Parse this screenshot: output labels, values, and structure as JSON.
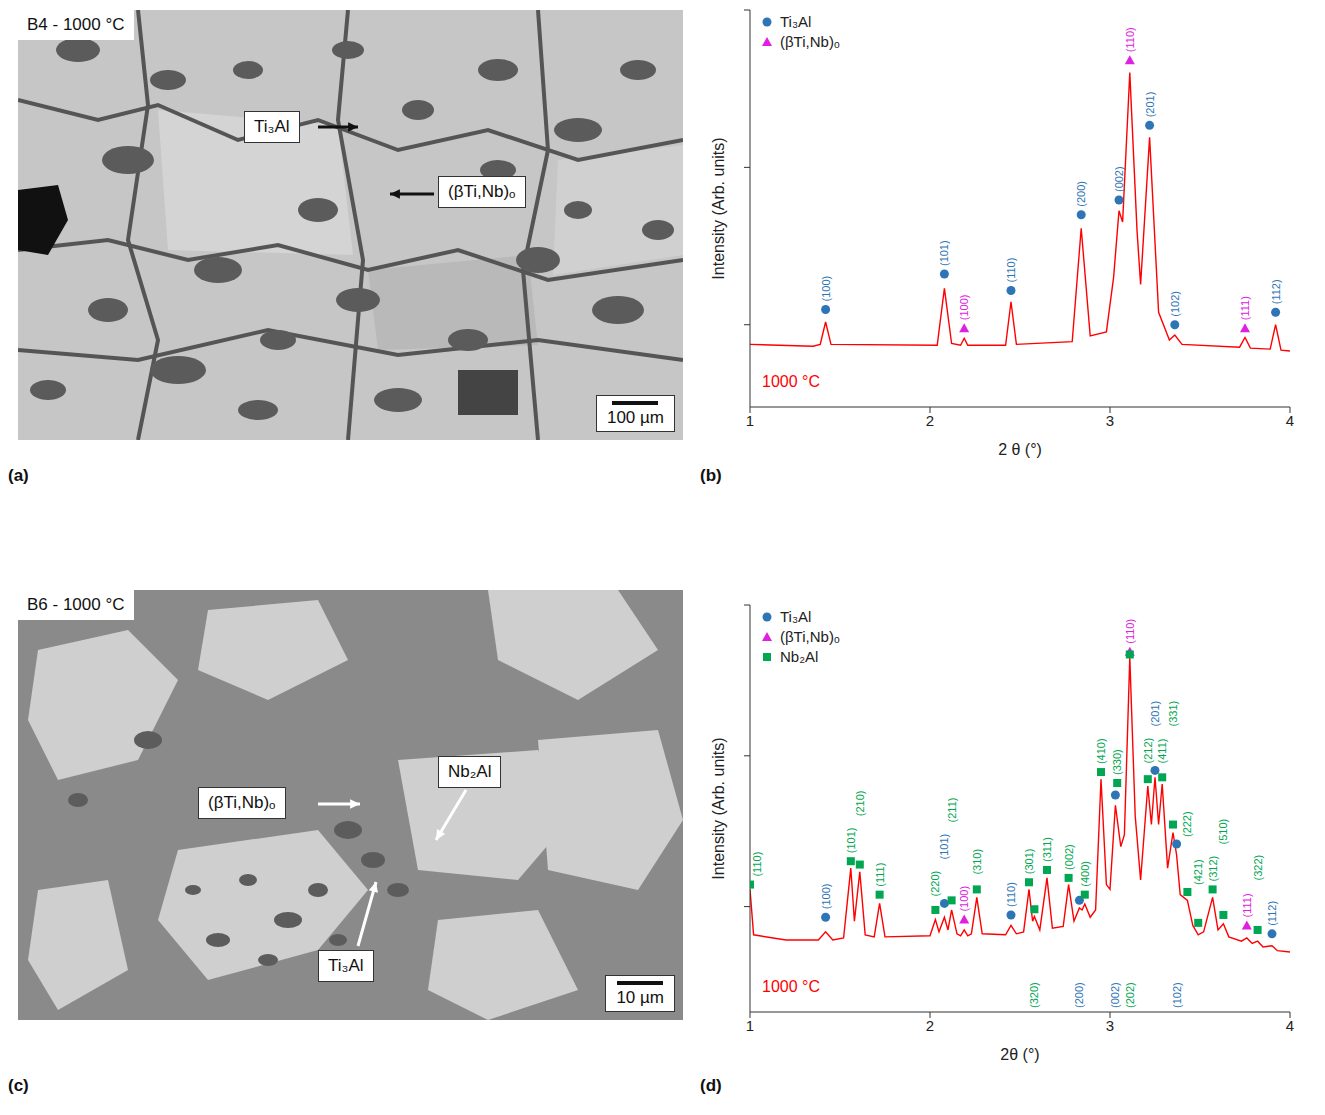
{
  "chart_data": [
    {
      "panel_label": "(b)",
      "type": "line",
      "x_label": "2 θ (°)",
      "y_label": "Intensity (Arb. units)",
      "annotation": "1000 °C",
      "log": "y",
      "tick_labels": "x",
      "legend": "upper left",
      "xlim": [
        1,
        4
      ],
      "xticks": [
        1,
        2,
        3,
        4
      ],
      "ylim": [
        3,
        1000
      ],
      "yticks": [
        10,
        100,
        1000
      ],
      "series": [
        {
          "type": "line",
          "line_style": "solid",
          "color": "#ff0000",
          "x": [
            1.0,
            1.35,
            1.39,
            1.42,
            1.45,
            2.04,
            2.08,
            2.12,
            2.17,
            2.19,
            2.21,
            2.42,
            2.45,
            2.48,
            2.79,
            2.84,
            2.89,
            2.98,
            3.02,
            3.05,
            3.07,
            3.11,
            3.15,
            3.17,
            3.22,
            3.27,
            3.33,
            3.36,
            3.4,
            3.72,
            3.75,
            3.78,
            3.89,
            3.92,
            3.95,
            4.0
          ],
          "values": [
            7.5,
            7.3,
            7.5,
            10.4,
            7.5,
            7.4,
            17,
            7.6,
            7.4,
            8.2,
            7.4,
            7.4,
            14,
            7.5,
            7.8,
            41,
            8.5,
            9,
            20,
            53,
            45,
            400,
            40,
            18,
            155,
            12,
            8,
            8.6,
            7.5,
            7.2,
            8.3,
            7.1,
            7,
            10,
            6.9,
            6.8
          ]
        },
        {
          "name": "Ti₃Al",
          "type": "scatter",
          "marker": "circle",
          "color": "#2e75b6",
          "x": [
            1.42,
            2.08,
            2.45,
            2.84,
            3.05,
            3.22,
            3.36,
            3.92
          ],
          "values": [
            12.5,
            21,
            16.5,
            50,
            62,
            185,
            10,
            12
          ],
          "labels": [
            "(100)",
            "(101)",
            "(110)",
            "(200)",
            "(002)",
            "(201)",
            "(102)",
            "(112)"
          ]
        },
        {
          "name": "(βTi,Nb)ₒ",
          "type": "scatter",
          "marker": "triangle",
          "color": "#e020e0",
          "x": [
            2.19,
            3.11,
            3.75
          ],
          "values": [
            9.5,
            480,
            9.5
          ],
          "labels": [
            "(100)",
            "(110)",
            "(111)"
          ]
        }
      ]
    },
    {
      "panel_label": "(d)",
      "type": "line",
      "x_label": "2θ (°)",
      "y_label": "Intensity (Arb. units)",
      "annotation": "1000 °C",
      "log": "y",
      "tick_labels": "x",
      "legend": "upper left",
      "xlim": [
        1,
        4
      ],
      "xticks": [
        1,
        2,
        3,
        4
      ],
      "ylim": [
        2,
        1000
      ],
      "yticks": [
        10,
        100,
        1000
      ],
      "series": [
        {
          "type": "line",
          "line_style": "solid",
          "color": "#ff0000",
          "x": [
            1.0,
            1.02,
            1.2,
            1.38,
            1.42,
            1.46,
            1.52,
            1.56,
            1.58,
            1.61,
            1.64,
            1.69,
            1.72,
            1.75,
            2.0,
            2.03,
            2.05,
            2.08,
            2.1,
            2.12,
            2.15,
            2.17,
            2.19,
            2.21,
            2.23,
            2.26,
            2.29,
            2.42,
            2.45,
            2.48,
            2.52,
            2.55,
            2.57,
            2.58,
            2.61,
            2.65,
            2.68,
            2.74,
            2.77,
            2.8,
            2.83,
            2.845,
            2.86,
            2.89,
            2.92,
            2.95,
            2.98,
            3.0,
            3.03,
            3.06,
            3.08,
            3.11,
            3.14,
            3.17,
            3.21,
            3.23,
            3.25,
            3.27,
            3.29,
            3.32,
            3.35,
            3.37,
            3.39,
            3.43,
            3.46,
            3.49,
            3.52,
            3.57,
            3.6,
            3.63,
            3.66,
            3.73,
            3.76,
            3.79,
            3.82,
            3.85,
            3.9,
            3.93,
            4.0
          ],
          "values": [
            13,
            6.5,
            6,
            6,
            6.8,
            6,
            6.2,
            18,
            8,
            17,
            6.5,
            6.3,
            10.5,
            6.3,
            6.4,
            8.2,
            6.8,
            8.5,
            7,
            9.5,
            6.6,
            6.4,
            7,
            6.4,
            6.6,
            11.5,
            6.6,
            6.5,
            7.5,
            6.6,
            6.8,
            13,
            8,
            8.6,
            7,
            15.5,
            7.2,
            7.4,
            14,
            8,
            9.8,
            9.5,
            10.4,
            8.5,
            9.5,
            70,
            14,
            13,
            47,
            25,
            30,
            450,
            40,
            15,
            63,
            35,
            72,
            35,
            65,
            18,
            31,
            22,
            12,
            11,
            7.5,
            6.5,
            6.8,
            11.5,
            7,
            7.7,
            6.3,
            5.9,
            6.2,
            5.7,
            5.9,
            5.4,
            5.5,
            5.1,
            5.0
          ]
        },
        {
          "name": "Ti₃Al",
          "type": "scatter",
          "marker": "circle",
          "color": "#2e75b6",
          "x": [
            1.42,
            2.08,
            2.45,
            2.83,
            3.03,
            3.25,
            3.37,
            3.9
          ],
          "values": [
            8.5,
            10.5,
            8.8,
            11,
            55,
            80,
            26,
            6.6
          ],
          "labels": [
            "(100)",
            "(101)",
            "(110)",
            "(200)",
            "(002)",
            "(201)",
            "(102)",
            "(112)"
          ]
        },
        {
          "name": "(βTi,Nb)ₒ",
          "type": "scatter",
          "marker": "triangle",
          "color": "#e020e0",
          "x": [
            2.19,
            3.11,
            3.76
          ],
          "values": [
            8.2,
            490,
            7.5
          ],
          "labels": [
            "(100)",
            "(110)",
            "(111)"
          ]
        },
        {
          "name": "Nb₂Al",
          "type": "scatter",
          "marker": "square",
          "color": "#00a651",
          "x": [
            1.0,
            1.56,
            1.61,
            1.72,
            2.03,
            2.12,
            2.26,
            2.55,
            2.58,
            2.65,
            2.77,
            2.86,
            2.95,
            3.04,
            3.11,
            3.21,
            3.29,
            3.35,
            3.43,
            3.49,
            3.57,
            3.63,
            3.82
          ],
          "values": [
            14,
            20,
            19,
            12,
            9.5,
            11,
            13,
            14.5,
            9.6,
            17.5,
            15.5,
            12,
            78,
            66,
            470,
            70,
            72,
            35,
            12.5,
            7.8,
            13,
            8.8,
            7
          ],
          "labels": [
            "(110)",
            "(101)",
            "(210)",
            "(111)",
            "(220)",
            "(211)",
            "(310)",
            "(301)",
            "(320)",
            "(311)",
            "(002)",
            "(400)",
            "(410)",
            "(330)",
            "(202)",
            "(212)",
            "(411)",
            "(331)",
            "(222)",
            "(421)",
            "(312)",
            "(510)",
            "(322)"
          ]
        }
      ]
    }
  ],
  "micrographs": [
    {
      "panel_label": "(a)",
      "sample_label": "B4 - 1000 °C",
      "phase_labels": [
        "Ti₃Al",
        "(βTi,Nb)ₒ"
      ],
      "scale_bar": "100 µm"
    },
    {
      "panel_label": "(c)",
      "sample_label": "B6 - 1000 °C",
      "phase_labels": [
        "(βTi,Nb)ₒ",
        "Nb₂Al",
        "Ti₃Al"
      ],
      "scale_bar": "10 µm"
    }
  ]
}
